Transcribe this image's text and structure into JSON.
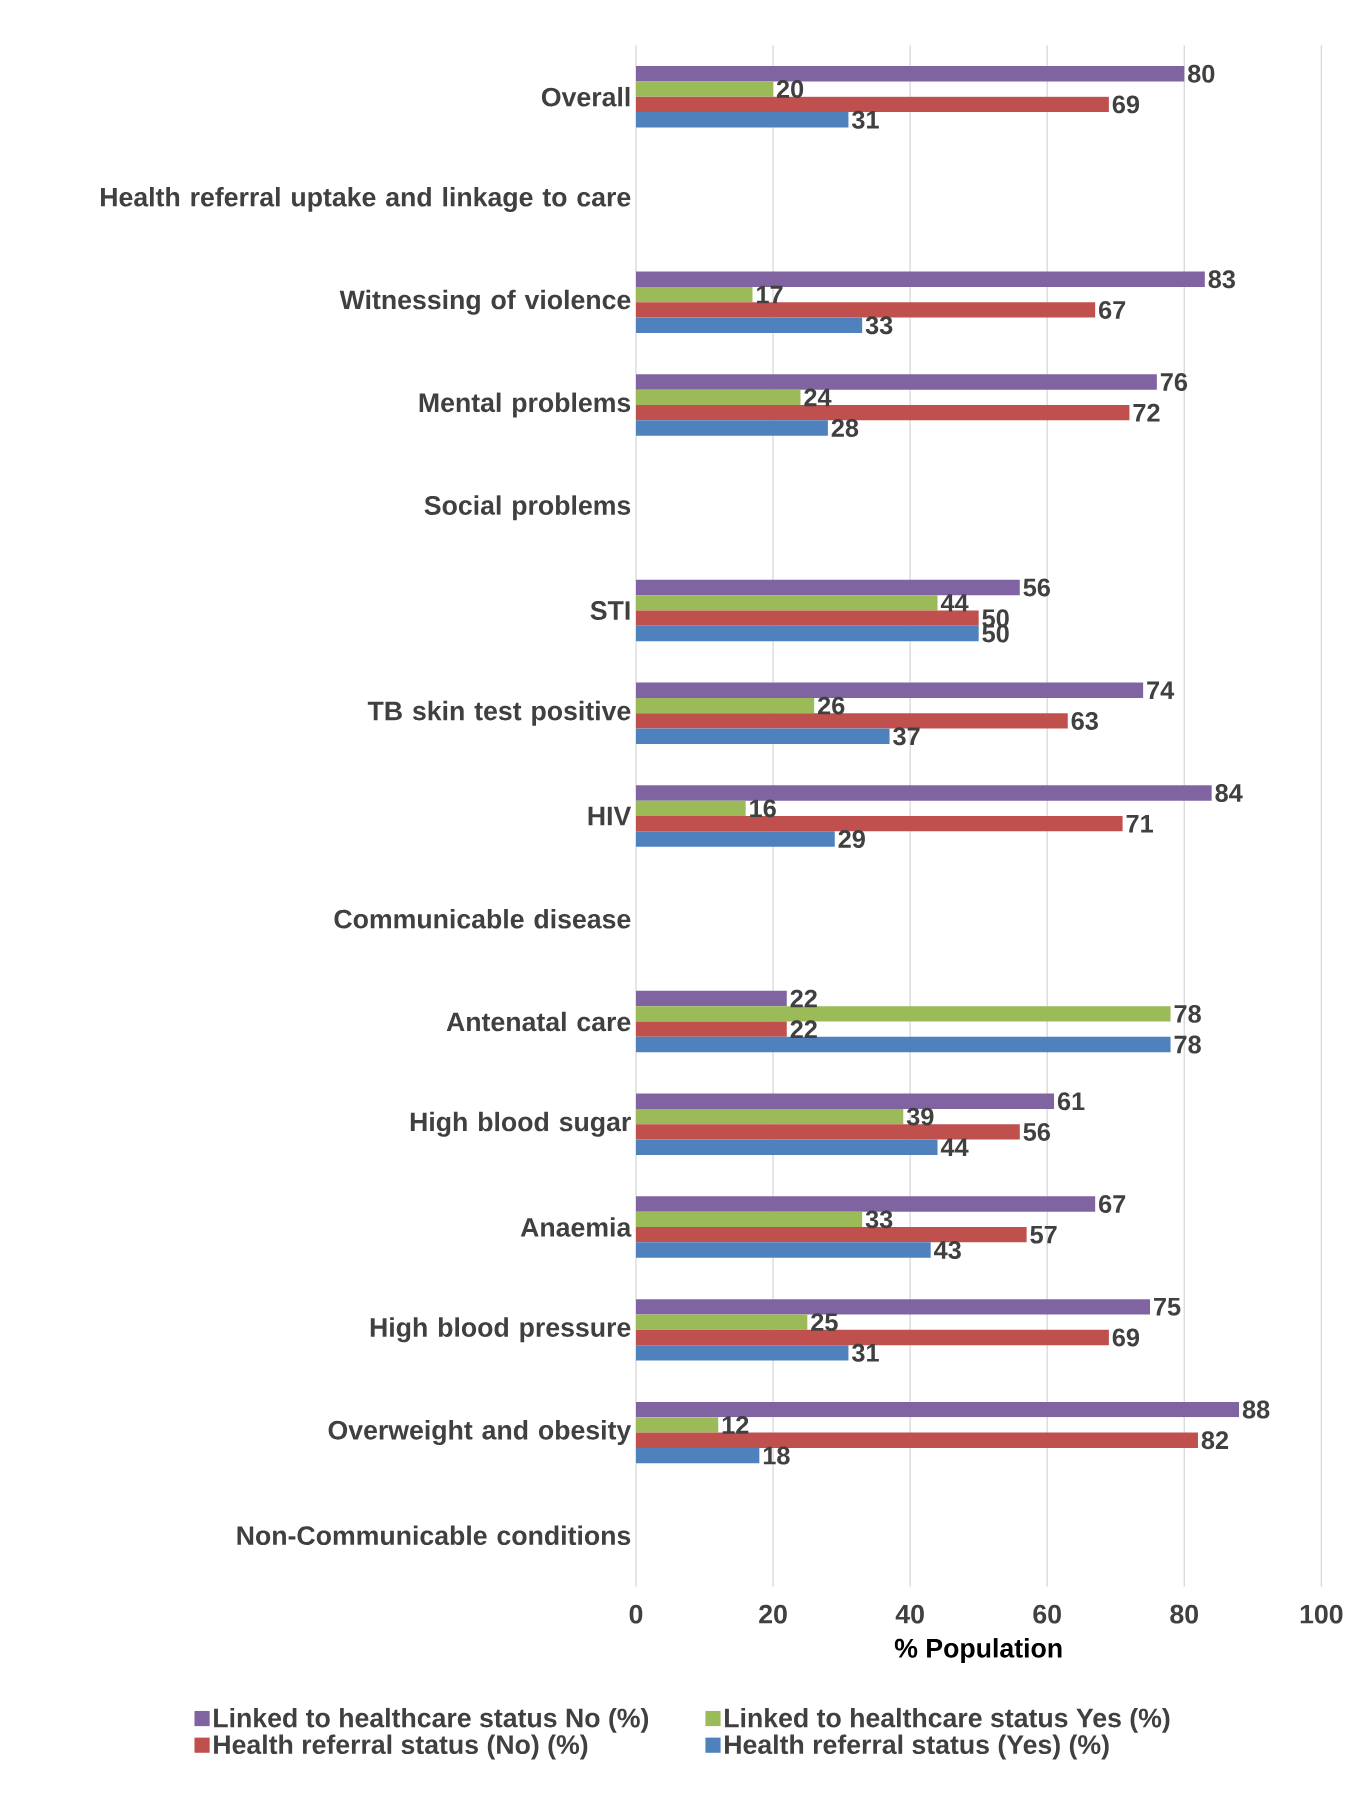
{
  "chart_data": {
    "type": "bar",
    "orientation": "horizontal",
    "xlabel": "% Population",
    "categories": [
      "Overall",
      "Health referral uptake and linkage to care",
      "Witnessing of violence",
      "Mental problems",
      "Social problems",
      "STI",
      "TB skin test positive",
      "HIV",
      "Communicable disease",
      "Antenatal care",
      "High blood sugar",
      "Anaemia",
      "High blood pressure",
      "Overweight  and obesity",
      "Non-Communicable conditions"
    ],
    "series": [
      {
        "name": "Linked to healthcare status No (%)",
        "color": "#8064a2",
        "values": [
          80,
          null,
          83,
          76,
          null,
          56,
          74,
          84,
          null,
          22,
          61,
          67,
          75,
          88,
          null
        ]
      },
      {
        "name": "Linked to healthcare status Yes (%)",
        "color": "#9bbb59",
        "values": [
          20,
          null,
          17,
          24,
          null,
          44,
          26,
          16,
          null,
          78,
          39,
          33,
          25,
          12,
          null
        ]
      },
      {
        "name": "Health referral status (No) (%)",
        "color": "#c0504d",
        "values": [
          69,
          null,
          67,
          72,
          null,
          50,
          63,
          71,
          null,
          22,
          56,
          57,
          69,
          82,
          null
        ]
      },
      {
        "name": "Health referral status (Yes) (%)",
        "color": "#4f81bd",
        "values": [
          31,
          null,
          33,
          28,
          null,
          50,
          37,
          29,
          null,
          78,
          44,
          43,
          31,
          18,
          null
        ]
      }
    ],
    "xlim": [
      0,
      100
    ],
    "xticks": [
      0,
      20,
      40,
      60,
      80,
      100
    ],
    "grid": "x",
    "legend": "bottom",
    "data_labels": true
  }
}
